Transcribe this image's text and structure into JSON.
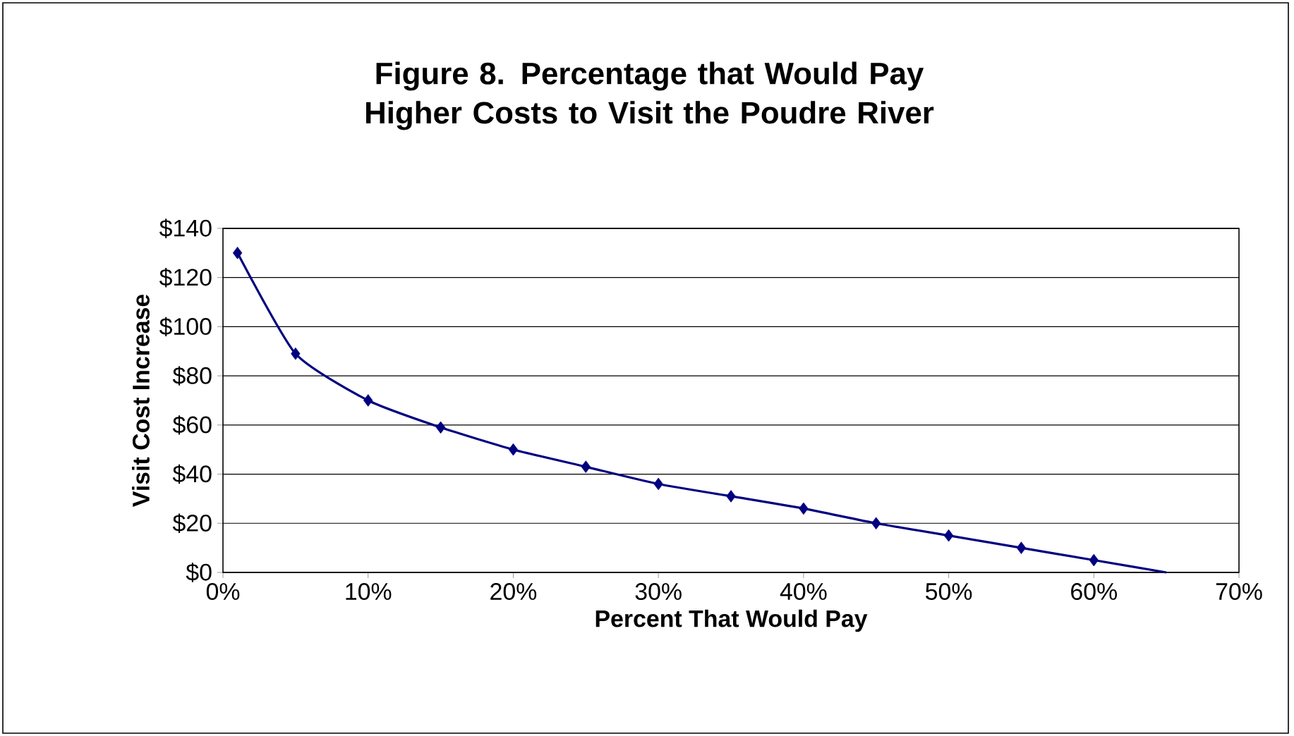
{
  "chart_data": {
    "type": "line",
    "title": "Figure 8. Percentage that Would Pay Higher Costs to Visit the Poudre River",
    "xlabel": "Percent That Would Pay",
    "ylabel": "Visit Cost Increase",
    "series": [
      {
        "color": "#000080",
        "marker": "none",
        "x": [
          1,
          5,
          10,
          15,
          20,
          25,
          30,
          35,
          40,
          45,
          50,
          55,
          60,
          65
        ],
        "values": [
          130,
          89,
          70,
          59,
          50,
          43,
          36,
          31,
          26,
          20,
          15,
          10,
          5,
          0
        ]
      },
      {
        "type": "scatter",
        "color": "#000080",
        "marker": "diamond",
        "x": [
          1,
          5,
          10,
          15,
          20,
          25,
          30,
          35,
          40,
          45,
          50,
          55,
          60
        ],
        "values": [
          130,
          89,
          70,
          59,
          50,
          43,
          36,
          31,
          26,
          20,
          15,
          10,
          5
        ]
      }
    ],
    "xlim": [
      0,
      70
    ],
    "ylim": [
      0,
      140
    ],
    "xticks": [
      {
        "value": 0,
        "label": "0%"
      },
      {
        "value": 10,
        "label": "10%"
      },
      {
        "value": 20,
        "label": "20%"
      },
      {
        "value": 30,
        "label": "30%"
      },
      {
        "value": 40,
        "label": "40%"
      },
      {
        "value": 50,
        "label": "50%"
      },
      {
        "value": 60,
        "label": "60%"
      },
      {
        "value": 70,
        "label": "70%"
      }
    ],
    "yticks": [
      {
        "value": 0,
        "label": "$0"
      },
      {
        "value": 20,
        "label": "$20"
      },
      {
        "value": 40,
        "label": "$40"
      },
      {
        "value": 60,
        "label": "$60"
      },
      {
        "value": 80,
        "label": "$80"
      },
      {
        "value": 100,
        "label": "$100"
      },
      {
        "value": 120,
        "label": "$120"
      },
      {
        "value": 140,
        "label": "$140"
      }
    ],
    "grid": "y"
  }
}
